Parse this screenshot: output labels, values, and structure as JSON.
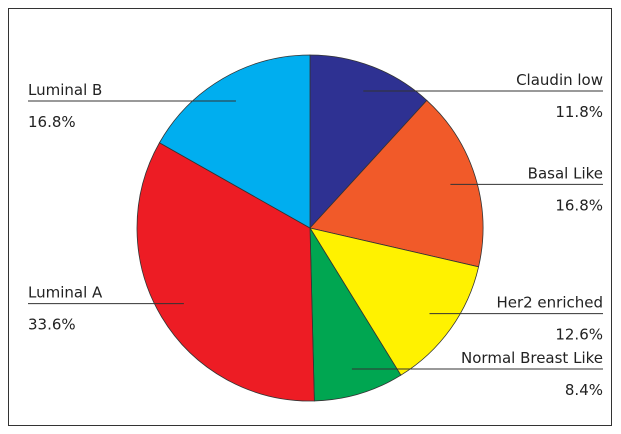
{
  "chart_data": {
    "type": "pie",
    "categories": [
      "Claudin low",
      "Basal Like",
      "Her2 enriched",
      "Normal Breast Like",
      "Luminal A",
      "Luminal B"
    ],
    "values": [
      11.8,
      16.8,
      12.6,
      8.4,
      33.6,
      16.8
    ],
    "value_labels": [
      "11.8%",
      "16.8%",
      "12.6%",
      "8.4%",
      "33.6%",
      "16.8%"
    ],
    "colors": [
      "#2e3192",
      "#f15a29",
      "#fff200",
      "#00a651",
      "#ed1c24",
      "#00aeef"
    ]
  }
}
